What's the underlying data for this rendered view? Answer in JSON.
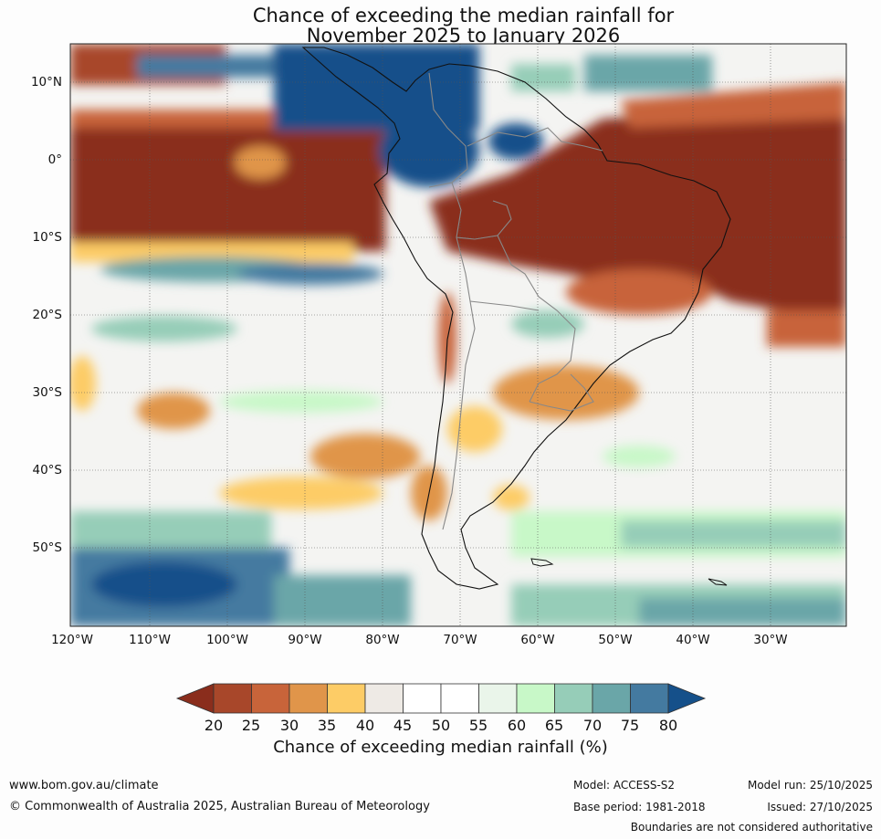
{
  "title": {
    "line1": "Chance of exceeding the median rainfall for",
    "line2": "November 2025 to January 2026"
  },
  "map": {
    "lat_labels": [
      "10°N",
      "0°",
      "10°S",
      "20°S",
      "30°S",
      "40°S",
      "50°S"
    ],
    "lon_labels": [
      "120°W",
      "110°W",
      "100°W",
      "90°W",
      "80°W",
      "70°W",
      "60°W",
      "50°W",
      "40°W",
      "30°W"
    ]
  },
  "colorbar": {
    "ticks": [
      "20",
      "25",
      "30",
      "35",
      "40",
      "45",
      "50",
      "55",
      "60",
      "65",
      "70",
      "75",
      "80"
    ],
    "label": "Chance of exceeding median rainfall (%)",
    "colors": [
      "#8a2d1c",
      "#a8472a",
      "#c8643a",
      "#e0954a",
      "#fdcc66",
      "#eeeae5",
      "#ffffff",
      "#ffffff",
      "#eaf5ea",
      "#c8f8c8",
      "#96cdb8",
      "#6aa6a8",
      "#447aa0",
      "#15508a"
    ]
  },
  "footer": {
    "url": "www.bom.gov.au/climate",
    "copyright": "© Commonwealth of Australia 2025, Australian Bureau of Meteorology",
    "model": "Model: ACCESS-S2",
    "base_period": "Base period: 1981-2018",
    "model_run": "Model run: 25/10/2025",
    "issued": "Issued: 27/10/2025",
    "disclaimer": "Boundaries are not considered authoritative"
  }
}
